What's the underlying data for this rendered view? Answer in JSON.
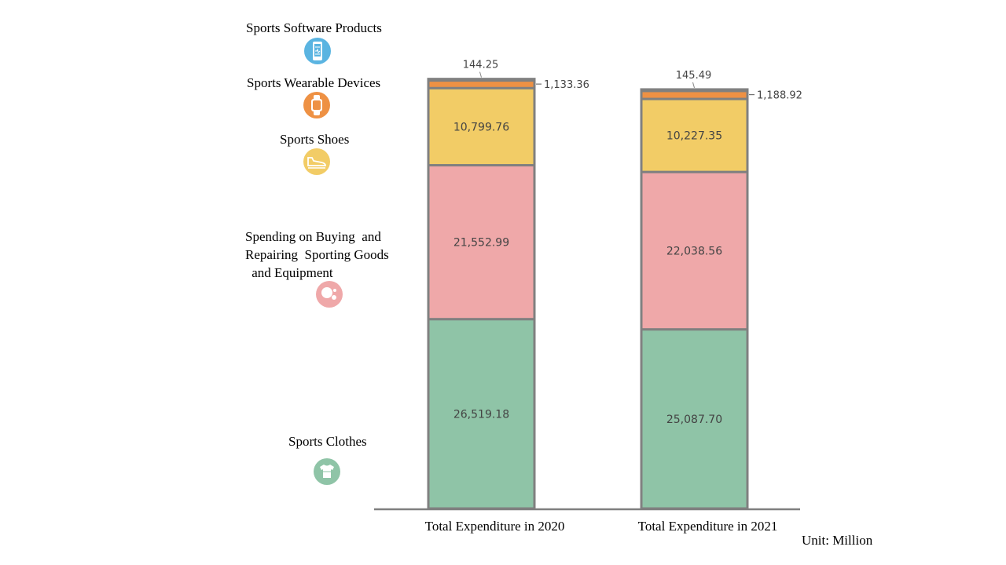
{
  "chart_data": {
    "type": "bar",
    "stacked": true,
    "categories": [
      "Total Expenditure in 2020",
      "Total Expenditure in 2021"
    ],
    "series": [
      {
        "name": "Sports Clothes",
        "icon": "t-shirt-icon",
        "color": "#8fc4a7",
        "values": [
          26519.18,
          25087.7
        ],
        "labels": [
          "26,519.18",
          "25,087.70"
        ]
      },
      {
        "name_lines": [
          "Spending on Buying  and",
          "Repairing  Sporting Goods",
          " and Equipment"
        ],
        "name": "Spending on Buying and Repairing Sporting Goods and Equipment",
        "icon": "sports-balls-icon",
        "color": "#efa8a9",
        "values": [
          21552.99,
          22038.56
        ],
        "labels": [
          "21,552.99",
          "22,038.56"
        ]
      },
      {
        "name": "Sports Shoes",
        "icon": "sneaker-icon",
        "color": "#f2cc66",
        "values": [
          10799.76,
          10227.35
        ],
        "labels": [
          "10,799.76",
          "10,227.35"
        ]
      },
      {
        "name": "Sports Wearable Devices",
        "icon": "smartwatch-icon",
        "color": "#ee9144",
        "values": [
          1133.36,
          1188.92
        ],
        "labels": [
          "1,133.36",
          "1,188.92"
        ]
      },
      {
        "name": "Sports Software Products",
        "icon": "smartphone-app-icon",
        "color": "#5ab4e1",
        "values": [
          144.25,
          145.49
        ],
        "labels": [
          "144.25",
          "145.49"
        ]
      }
    ],
    "unit": "Unit:  Million",
    "ylim": [
      0,
      61000
    ],
    "legend_position": "left",
    "grid": false
  }
}
